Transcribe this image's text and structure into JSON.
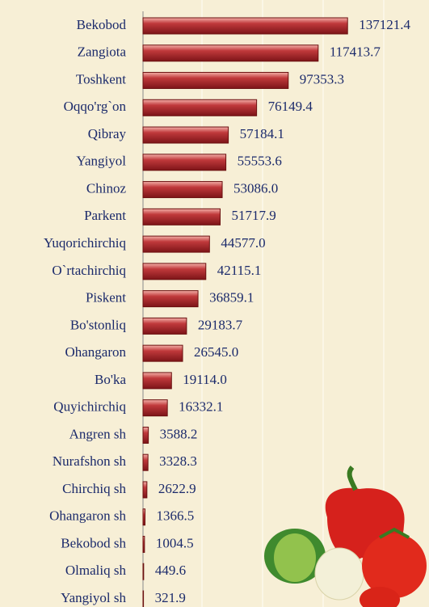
{
  "chart_data": {
    "type": "bar",
    "orientation": "horizontal",
    "categories": [
      "Bekobod",
      "Zangiota",
      "Toshkent",
      "Oqqo'rg`on",
      "Qibray",
      "Yangiyol",
      "Chinoz",
      "Parkent",
      "Yuqorichirchiq",
      "O`rtachirchiq",
      "Piskent",
      "Bo'stonliq",
      "Ohangaron",
      "Bo'ka",
      "Quyichirchiq",
      "Angren sh",
      "Nurafshon sh",
      "Chirchiq sh",
      "Ohangaron sh",
      "Bekobod sh",
      "Olmaliq sh",
      "Yangiyol sh"
    ],
    "values": [
      137121.4,
      117413.7,
      97353.3,
      76149.4,
      57184.1,
      55553.6,
      53086.0,
      51717.9,
      44577.0,
      42115.1,
      36859.1,
      29183.7,
      26545.0,
      19114.0,
      16332.1,
      3588.2,
      3328.3,
      2622.9,
      1366.5,
      1004.5,
      449.6,
      321.9
    ],
    "value_labels": [
      "137121.4",
      "117413.7",
      "97353.3",
      "76149.4",
      "57184.1",
      "55553.6",
      "53086.0",
      "51717.9",
      "44577.0",
      "42115.1",
      "36859.1",
      "29183.7",
      "26545.0",
      "19114.0",
      "16332.1",
      "3588.2",
      "3328.3",
      "2622.9",
      "1366.5",
      "1004.5",
      "449.6",
      "321.9"
    ],
    "color": "#c0393b",
    "xlim": [
      0,
      150000
    ]
  }
}
